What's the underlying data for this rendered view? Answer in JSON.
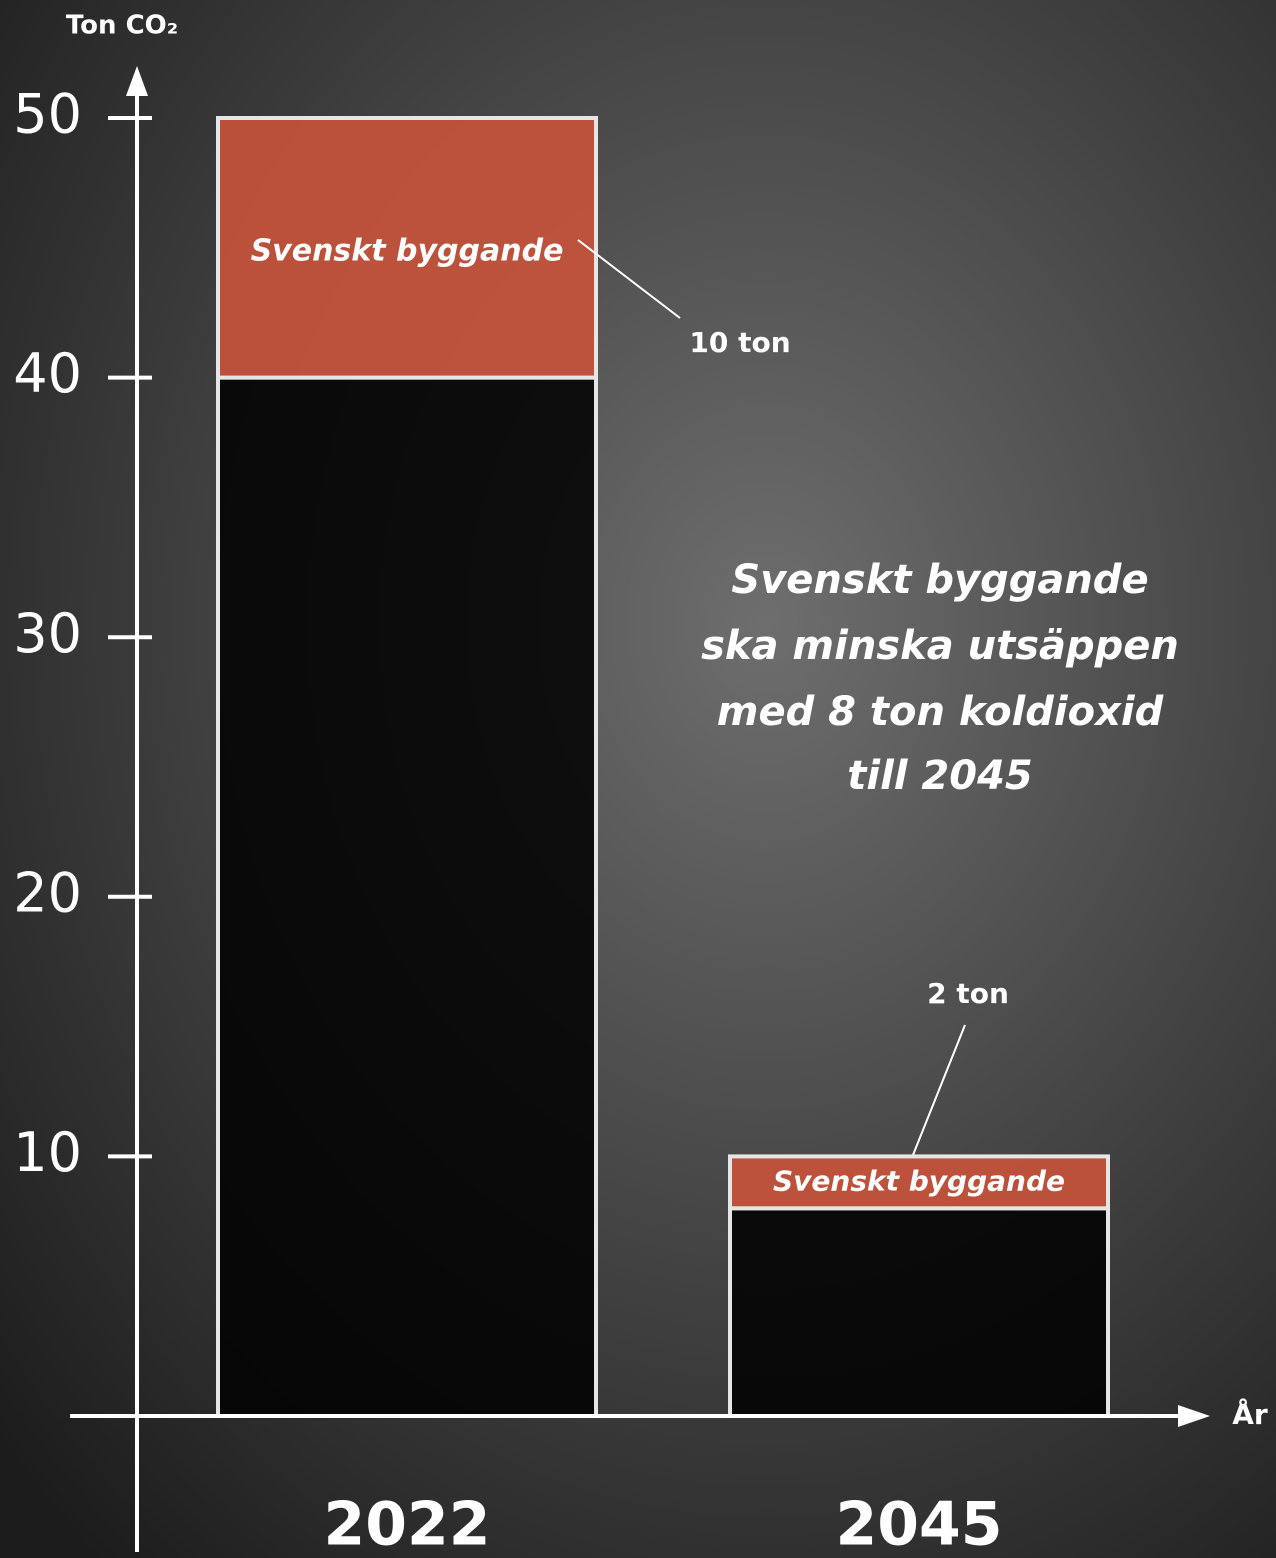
{
  "chart_data": {
    "type": "stacked_bar",
    "y_label": "Ton CO₂",
    "x_label": "År",
    "categories": [
      "2022",
      "2045"
    ],
    "series": [
      {
        "color": "#000000",
        "values": [
          40,
          8
        ]
      },
      {
        "name": "Svenskt byggande",
        "color": "#c9533a",
        "values": [
          10,
          2
        ],
        "value_labels": [
          "10 ton",
          "2 ton"
        ]
      }
    ],
    "ylim": [
      0,
      50
    ],
    "yticks": [
      10,
      20,
      30,
      40,
      50
    ],
    "annotation": [
      "Svenskt byggande",
      "ska minska utsäppen",
      "med 8 ton koldioxid",
      "till 2045"
    ]
  }
}
